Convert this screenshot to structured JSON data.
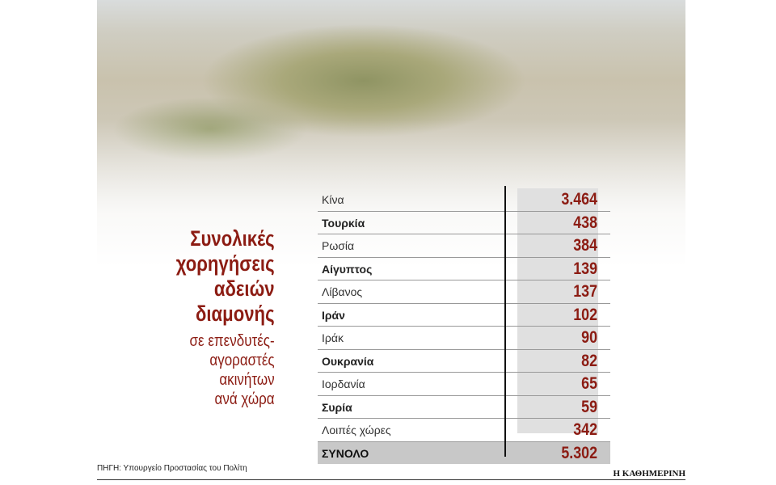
{
  "title": [
    "Συνολικές",
    "χορηγήσεις",
    "αδειών",
    "διαμονής"
  ],
  "subtitle": [
    "σε επενδυτές-",
    "αγοραστές",
    "ακινήτων",
    "ανά χώρα"
  ],
  "table": {
    "rows": [
      {
        "country": "Κίνα",
        "value": "3.464",
        "bold": false
      },
      {
        "country": "Τουρκία",
        "value": "438",
        "bold": true
      },
      {
        "country": "Ρωσία",
        "value": "384",
        "bold": false
      },
      {
        "country": "Αίγυπτος",
        "value": "139",
        "bold": true
      },
      {
        "country": "Λίβανος",
        "value": "137",
        "bold": false
      },
      {
        "country": "Ιράν",
        "value": "102",
        "bold": true
      },
      {
        "country": "Ιράκ",
        "value": "90",
        "bold": false
      },
      {
        "country": "Ουκρανία",
        "value": "82",
        "bold": true
      },
      {
        "country": "Ιορδανία",
        "value": "65",
        "bold": false
      },
      {
        "country": "Συρία",
        "value": "59",
        "bold": true
      },
      {
        "country": "Λοιπές χώρες",
        "value": "342",
        "bold": false
      }
    ],
    "total": {
      "country": "ΣΥΝΟΛΟ",
      "value": "5.302"
    }
  },
  "source": "ΠΗΓΗ: Υπουργείο Προστασίας του Πολίτη",
  "brand": "Η ΚΑΘΗΜΕΡΙΝΗ"
}
